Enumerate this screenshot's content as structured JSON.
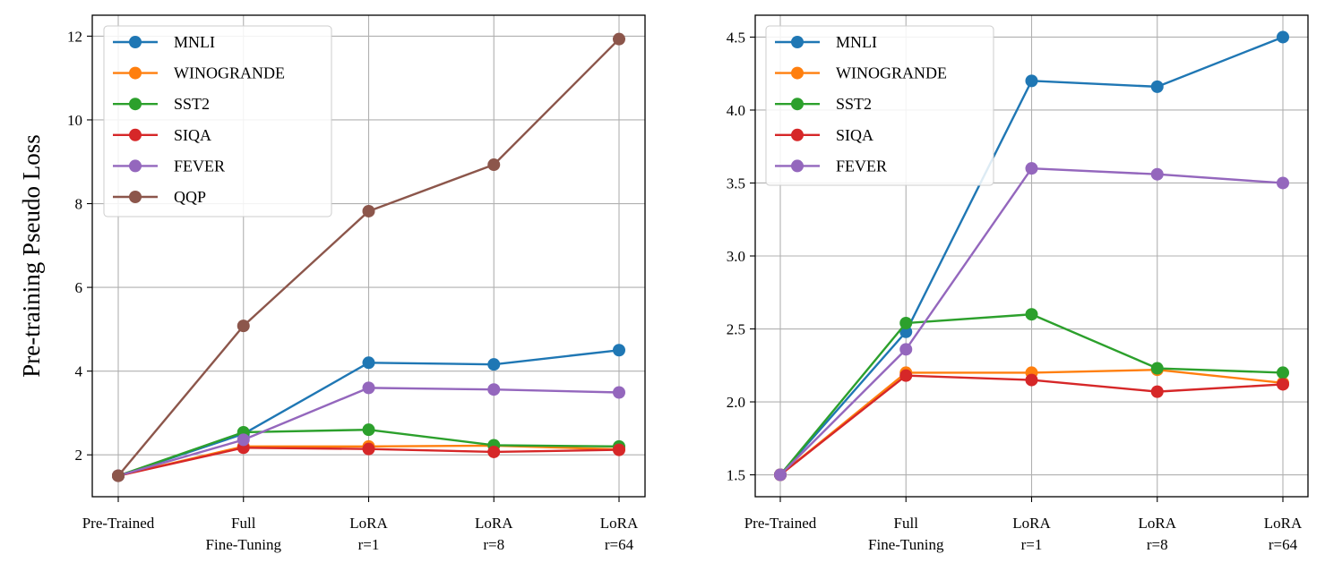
{
  "chart_data": [
    {
      "type": "line",
      "title": "",
      "xlabel": "",
      "ylabel": "Pre-training Pseudo Loss",
      "categories": [
        [
          "Pre-Trained"
        ],
        [
          "Full",
          "Fine-Tuning"
        ],
        [
          "LoRA",
          "r=1"
        ],
        [
          "LoRA",
          "r=8"
        ],
        [
          "LoRA",
          "r=64"
        ]
      ],
      "ylim": [
        1.0,
        12.5
      ],
      "yticks": [
        2,
        4,
        6,
        8,
        10,
        12
      ],
      "ytick_labels": [
        "2",
        "4",
        "6",
        "8",
        "10",
        "12"
      ],
      "grid": true,
      "legend_position": "upper-left",
      "series": [
        {
          "name": "MNLI",
          "color": "#1f77b4",
          "values": [
            1.5,
            2.5,
            4.2,
            4.16,
            4.5
          ]
        },
        {
          "name": "WINOGRANDE",
          "color": "#ff7f0e",
          "values": [
            1.5,
            2.2,
            2.2,
            2.22,
            2.13
          ]
        },
        {
          "name": "SST2",
          "color": "#2ca02c",
          "values": [
            1.5,
            2.54,
            2.6,
            2.23,
            2.2
          ]
        },
        {
          "name": "SIQA",
          "color": "#d62728",
          "values": [
            1.5,
            2.17,
            2.14,
            2.07,
            2.12
          ]
        },
        {
          "name": "FEVER",
          "color": "#9467bd",
          "values": [
            1.5,
            2.36,
            3.6,
            3.56,
            3.49
          ]
        },
        {
          "name": "QQP",
          "color": "#8c564b",
          "values": [
            1.5,
            5.08,
            7.82,
            8.93,
            11.93
          ]
        }
      ]
    },
    {
      "type": "line",
      "title": "",
      "xlabel": "",
      "ylabel": "",
      "categories": [
        [
          "Pre-Trained"
        ],
        [
          "Full",
          "Fine-Tuning"
        ],
        [
          "LoRA",
          "r=1"
        ],
        [
          "LoRA",
          "r=8"
        ],
        [
          "LoRA",
          "r=64"
        ]
      ],
      "ylim": [
        1.35,
        4.65
      ],
      "yticks": [
        1.5,
        2.0,
        2.5,
        3.0,
        3.5,
        4.0,
        4.5
      ],
      "ytick_labels": [
        "1.5",
        "2.0",
        "2.5",
        "3.0",
        "3.5",
        "4.0",
        "4.5"
      ],
      "grid": true,
      "legend_position": "upper-left",
      "series": [
        {
          "name": "MNLI",
          "color": "#1f77b4",
          "values": [
            1.5,
            2.48,
            4.2,
            4.16,
            4.5
          ]
        },
        {
          "name": "WINOGRANDE",
          "color": "#ff7f0e",
          "values": [
            1.5,
            2.2,
            2.2,
            2.22,
            2.13
          ]
        },
        {
          "name": "SST2",
          "color": "#2ca02c",
          "values": [
            1.5,
            2.54,
            2.6,
            2.23,
            2.2
          ]
        },
        {
          "name": "SIQA",
          "color": "#d62728",
          "values": [
            1.5,
            2.18,
            2.15,
            2.07,
            2.12
          ]
        },
        {
          "name": "FEVER",
          "color": "#9467bd",
          "values": [
            1.5,
            2.36,
            3.6,
            3.56,
            3.5
          ]
        }
      ]
    }
  ]
}
